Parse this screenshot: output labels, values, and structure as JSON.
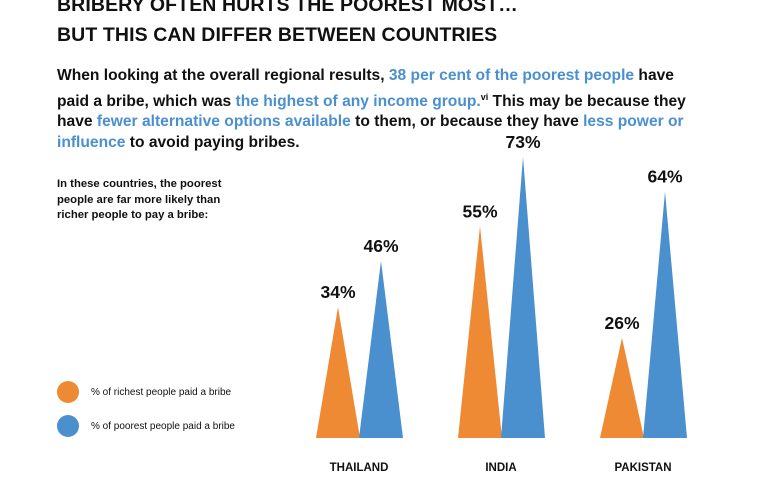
{
  "title": {
    "line1": "BRIBERY OFTEN HURTS THE POOREST MOST…",
    "line2": "BUT THIS CAN DIFFER BETWEEN COUNTRIES"
  },
  "intro": {
    "t1": "When looking at the overall regional results, ",
    "h1": "38 per cent of the poorest people",
    "t2": " have paid a bribe, which was ",
    "h2": "the highest of any income group.",
    "sup": "vi",
    "t3": " This may be because they have ",
    "h3": "fewer alternative options available",
    "t4": " to them, or because they have ",
    "h4": "less power or influence",
    "t5": " to avoid paying bribes."
  },
  "note": "In these countries, the poorest people are far more likely than richer people to pay a bribe:",
  "colors": {
    "richest": "#ef8a34",
    "poorest": "#4a90cf",
    "highlight": "#4a90cf"
  },
  "chart_data": {
    "type": "bar",
    "mark_shape": "triangle",
    "categories": [
      "THAILAND",
      "INDIA",
      "PAKISTAN"
    ],
    "series": [
      {
        "name": "% of richest people paid a bribe",
        "values": [
          34,
          55,
          26
        ],
        "labels": [
          "34%",
          "55%",
          "26%"
        ],
        "color": "#ef8a34"
      },
      {
        "name": "% of poorest people paid a bribe",
        "values": [
          46,
          73,
          64
        ],
        "labels": [
          "46%",
          "73%",
          "64%"
        ],
        "color": "#4a90cf"
      }
    ],
    "unit": "%",
    "legend_position": "left",
    "grid": false
  }
}
